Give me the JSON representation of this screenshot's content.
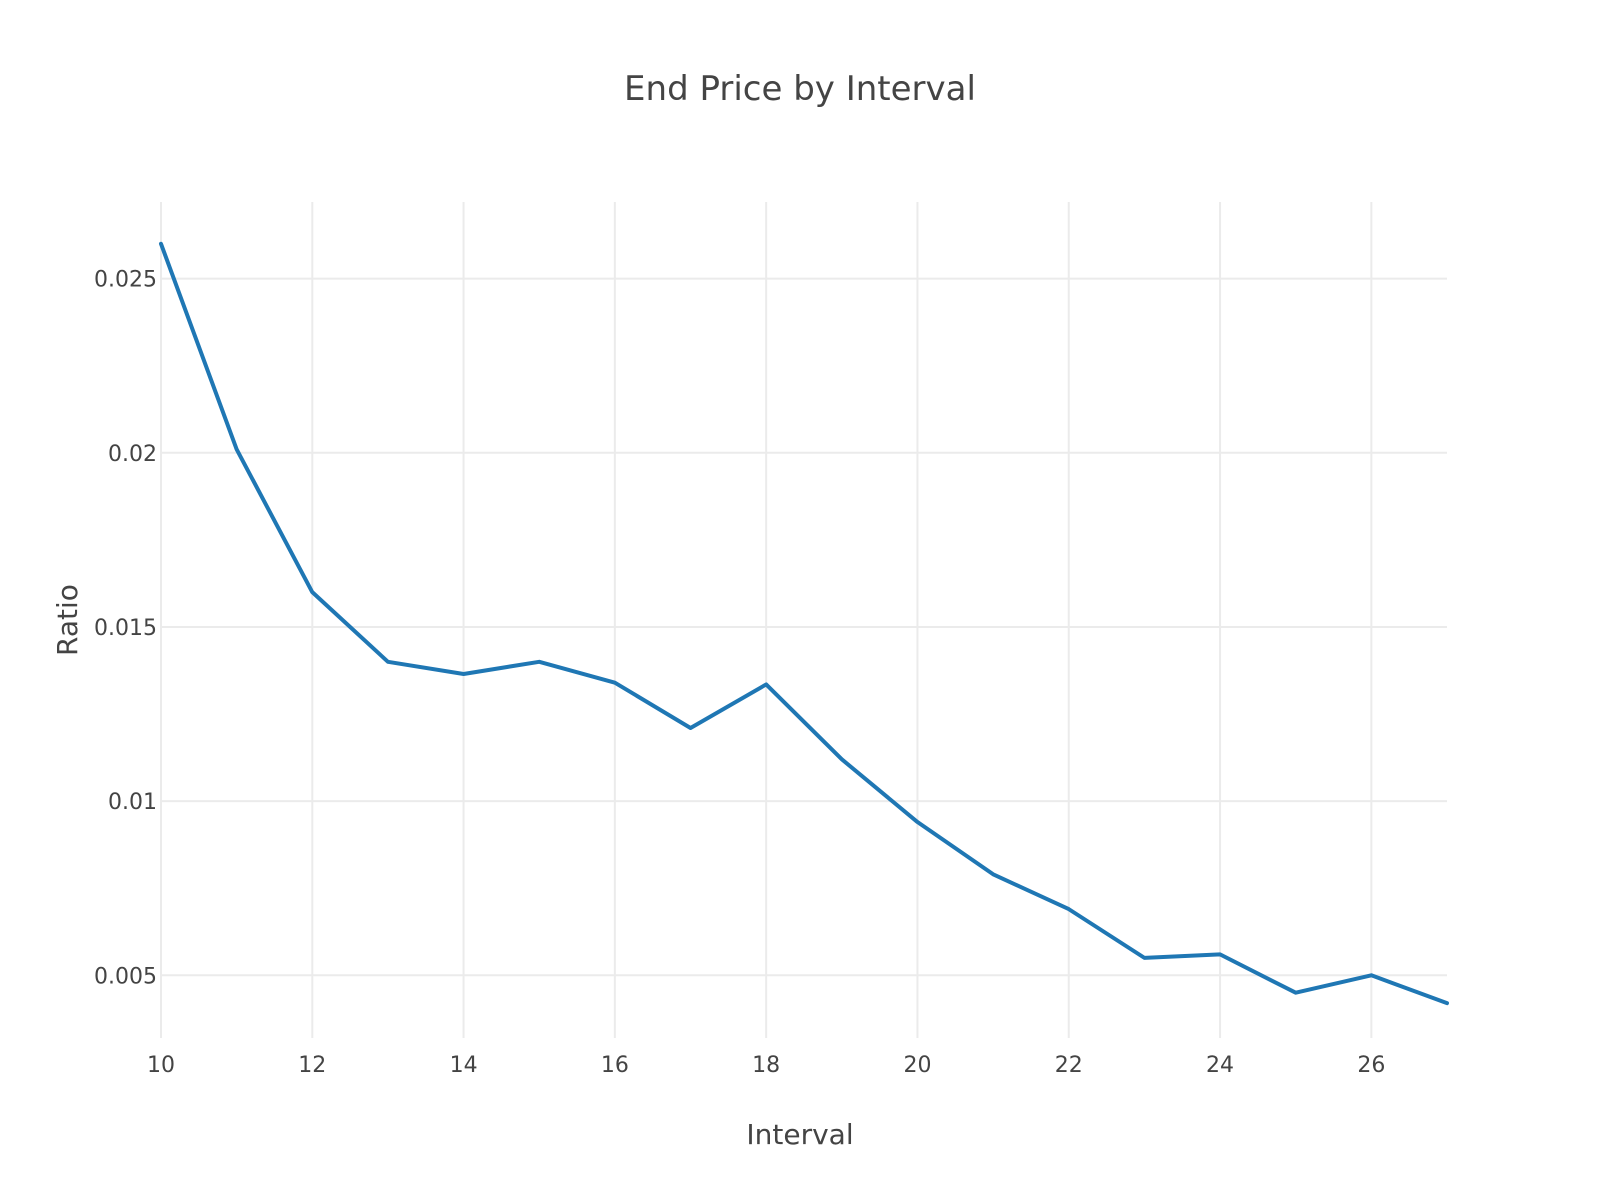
{
  "chart_data": {
    "type": "line",
    "title": "End Price by Interval",
    "xlabel": "Interval",
    "ylabel": "Ratio",
    "xlim": [
      10,
      27
    ],
    "ylim": [
      0.0032,
      0.0272
    ],
    "x_ticks": [
      10,
      12,
      14,
      16,
      18,
      20,
      22,
      24,
      26
    ],
    "x_tick_labels": [
      "10",
      "12",
      "14",
      "16",
      "18",
      "20",
      "22",
      "24",
      "26"
    ],
    "y_ticks": [
      0.005,
      0.01,
      0.015,
      0.02,
      0.025
    ],
    "y_tick_labels": [
      "0.005",
      "0.01",
      "0.015",
      "0.02",
      "0.025"
    ],
    "grid": true,
    "legend": "none",
    "series": [
      {
        "color": "#1f77b4",
        "x": [
          10,
          11,
          12,
          13,
          14,
          15,
          16,
          17,
          18,
          19,
          20,
          21,
          22,
          23,
          24,
          25,
          26,
          27
        ],
        "y": [
          0.026,
          0.0201,
          0.016,
          0.014,
          0.01365,
          0.014,
          0.0134,
          0.0121,
          0.01335,
          0.0112,
          0.0094,
          0.0079,
          0.0069,
          0.0055,
          0.0056,
          0.0045,
          0.005,
          0.0042
        ]
      }
    ]
  }
}
